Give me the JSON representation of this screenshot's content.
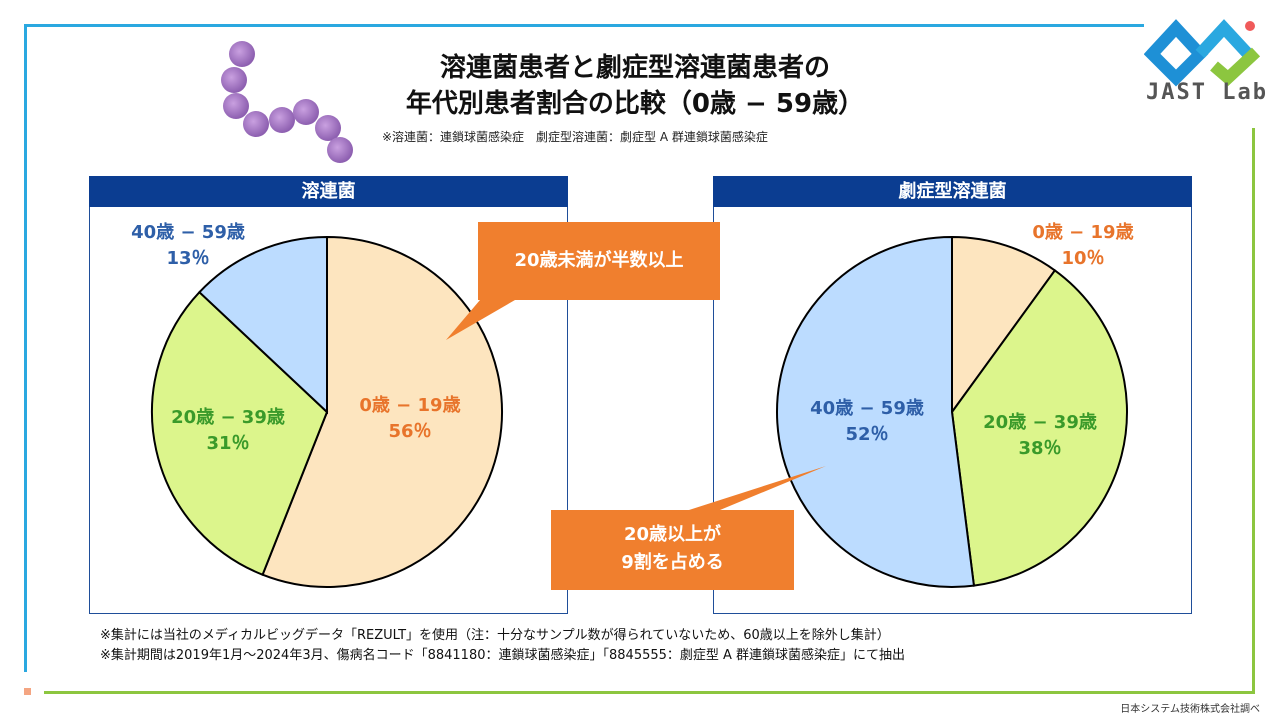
{
  "title": {
    "line1": "溶連菌患者と劇症型溶連菌患者の",
    "line2": "年代別患者割合の比較（0歳 − 59歳）",
    "note": "※溶連菌：連鎖球菌感染症　劇症型溶連菌：劇症型 A 群連鎖球菌感染症"
  },
  "logo": {
    "text": "JAST Lab"
  },
  "colors": {
    "slice_0_19": "#fde5bf",
    "slice_20_39": "#dcf58c",
    "slice_40_59": "#bcdcff",
    "callout": "#f07f2e",
    "header": "#0b3d91"
  },
  "chart_data": [
    {
      "type": "pie",
      "title": "溶連菌",
      "labels": [
        "0歳 − 19歳",
        "20歳 − 39歳",
        "40歳 − 59歳"
      ],
      "values": [
        56,
        31,
        13
      ],
      "display": [
        "0歳 − 19歳\n56％",
        "20歳 − 39歳\n31％",
        "40歳 − 59歳\n13％"
      ]
    },
    {
      "type": "pie",
      "title": "劇症型溶連菌",
      "labels": [
        "0歳 − 19歳",
        "20歳 − 39歳",
        "40歳 − 59歳"
      ],
      "values": [
        10,
        38,
        52
      ],
      "display": [
        "0歳 − 19歳\n10％",
        "20歳 − 39歳\n38％",
        "40歳 − 59歳\n52％"
      ]
    }
  ],
  "labels": {
    "left": {
      "a": {
        "range": "0歳 − 19歳",
        "pct": "56％"
      },
      "b": {
        "range": "20歳 − 39歳",
        "pct": "31％"
      },
      "c": {
        "range": "40歳 − 59歳",
        "pct": "13％"
      }
    },
    "right": {
      "a": {
        "range": "0歳 − 19歳",
        "pct": "10％"
      },
      "b": {
        "range": "20歳 − 39歳",
        "pct": "38％"
      },
      "c": {
        "range": "40歳 − 59歳",
        "pct": "52％"
      }
    }
  },
  "callouts": {
    "left": "20歳未満が半数以上",
    "right_line1": "20歳以上が",
    "right_line2": "9割を占める"
  },
  "footnotes": {
    "line1": "※集計には当社のメディカルビッグデータ「REZULT」を使用（注：十分なサンプル数が得られていないため、60歳以上を除外し集計）",
    "line2": "※集計期間は2019年1月〜2024年3月、傷病名コード「8841180：連鎖球菌感染症」「8845555：劇症型 A 群連鎖球菌感染症」にて抽出"
  },
  "source": "日本システム技術株式会社調べ"
}
